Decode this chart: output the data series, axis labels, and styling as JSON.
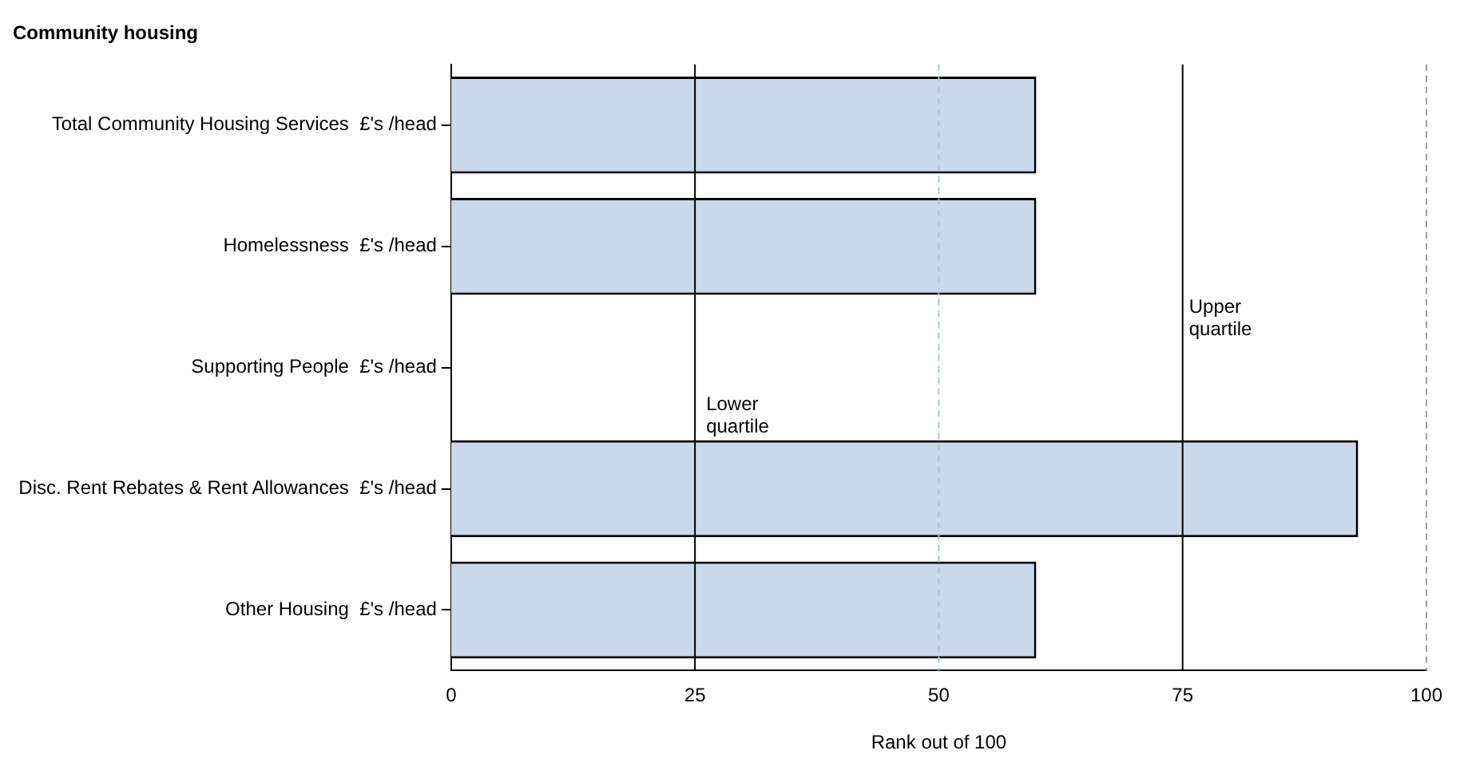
{
  "chart_data": {
    "type": "bar",
    "orientation": "horizontal",
    "title": "Community housing",
    "xlabel": "Rank out of 100",
    "categories": [
      "Total Community Housing Services  £'s /head",
      "Homelessness  £'s /head",
      "Supporting People  £'s /head",
      "Disc. Rent Rebates & Rent Allowances  £'s /head",
      "Other Housing  £'s /head"
    ],
    "values": [
      60,
      60,
      null,
      93,
      60
    ],
    "color": "#c9d8ea",
    "xlim": [
      0,
      100
    ],
    "xticks": [
      0,
      25,
      50,
      75,
      100
    ],
    "grid": false,
    "legend": false,
    "ref_lines": [
      {
        "axis": "x",
        "value": 25,
        "label": "Lower quartile",
        "color": "#000000",
        "line_style": "solid"
      },
      {
        "axis": "x",
        "value": 50,
        "color": "#a9c4dc",
        "line_style": "dashed"
      },
      {
        "axis": "x",
        "value": 75,
        "label": "Upper quartile",
        "color": "#000000",
        "line_style": "solid"
      },
      {
        "axis": "x",
        "value": 100,
        "color": "#a0a0a0",
        "line_style": "dashed"
      }
    ]
  }
}
